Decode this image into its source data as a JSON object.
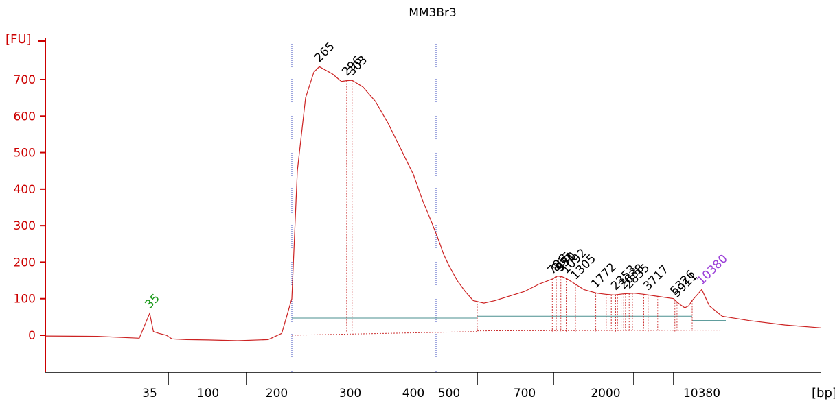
{
  "chart_data": {
    "type": "line",
    "title": "MM3Br3",
    "ylabel": "[FU]",
    "xlabel": "[bp]",
    "ylim": [
      -90,
      780
    ],
    "y_ticks": [
      0,
      100,
      200,
      300,
      400,
      500,
      600,
      700
    ],
    "x_ticks": [
      "35",
      "100",
      "200",
      "300",
      "400",
      "500",
      "700",
      "2000",
      "10380"
    ],
    "series": [
      {
        "x": [
          15,
          25,
          33,
          35,
          37,
          40,
          44,
          50,
          70,
          100,
          150,
          190,
          205,
          215,
          225,
          240,
          255,
          265,
          280,
          290,
          296,
          303,
          320,
          340,
          360,
          380,
          400,
          420,
          440,
          460,
          480,
          500,
          520,
          540,
          560,
          600,
          650,
          700,
          750,
          800,
          850,
          900,
          1000,
          1100,
          1300,
          1500,
          1800,
          2000,
          2300,
          2600,
          3000,
          3500,
          4000,
          5000,
          6000,
          7000,
          8000,
          9000,
          10000,
          10380,
          10800,
          11500,
          13000,
          15000,
          17000
        ],
        "y": [
          -2,
          -3,
          -8,
          60,
          10,
          5,
          0,
          -10,
          -12,
          -13,
          -15,
          -12,
          5,
          100,
          450,
          650,
          720,
          735,
          715,
          695,
          697,
          698,
          680,
          640,
          580,
          510,
          440,
          370,
          310,
          260,
          220,
          190,
          150,
          120,
          95,
          88,
          95,
          120,
          140,
          155,
          160,
          162,
          160,
          155,
          140,
          125,
          115,
          112,
          110,
          113,
          115,
          112,
          108,
          100,
          90,
          82,
          75,
          80,
          95,
          125,
          80,
          52,
          40,
          28,
          20
        ]
      }
    ],
    "peaks": [
      {
        "label": "35",
        "x": 35,
        "color": "#1a9a1a"
      },
      {
        "label": "265",
        "x": 265,
        "color": "#000000"
      },
      {
        "label": "296",
        "x": 296,
        "color": "#000000"
      },
      {
        "label": "303",
        "x": 303,
        "color": "#000000"
      },
      {
        "label": "796",
        "x": 796,
        "color": "#000000"
      },
      {
        "label": "865",
        "x": 865,
        "color": "#000000"
      },
      {
        "label": "951",
        "x": 951,
        "color": "#000000"
      },
      {
        "label": "970",
        "x": 970,
        "color": "#000000"
      },
      {
        "label": "1092",
        "x": 1092,
        "color": "#000000"
      },
      {
        "label": "1305",
        "x": 1305,
        "color": "#000000"
      },
      {
        "label": "1772",
        "x": 1772,
        "color": "#000000"
      },
      {
        "label": "2353",
        "x": 2353,
        "color": "#000000"
      },
      {
        "label": "2638",
        "x": 2638,
        "color": "#000000"
      },
      {
        "label": "2835",
        "x": 2835,
        "color": "#000000"
      },
      {
        "label": "3717",
        "x": 3717,
        "color": "#000000"
      },
      {
        "label": "5326",
        "x": 5326,
        "color": "#000000"
      },
      {
        "label": "5911",
        "x": 5911,
        "color": "#000000"
      },
      {
        "label": "10380",
        "x": 10380,
        "color": "#9b3fd8"
      }
    ],
    "region_markers_x": [
      215,
      450
    ],
    "region_baselines": [
      {
        "x_start": 215,
        "x_end": 570,
        "y": 47
      },
      {
        "x_start": 570,
        "x_end": 10000,
        "y": 52
      },
      {
        "x_start": 10000,
        "x_end": 11700,
        "y": 40
      }
    ]
  }
}
